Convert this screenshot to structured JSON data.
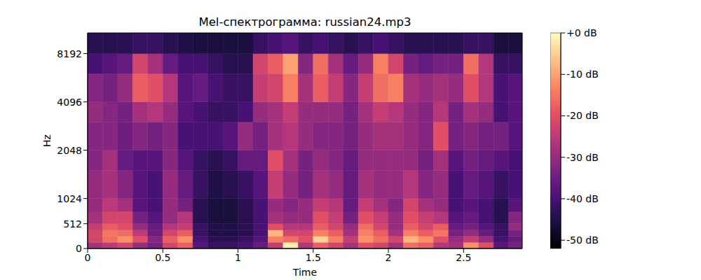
{
  "chart_data": {
    "type": "heatmap",
    "title": "Mel-спектрограмма: russian24.mp3",
    "x_label": "Time",
    "y_label": "Hz",
    "xlim": [
      0,
      2.89
    ],
    "xticks": [
      0,
      0.5,
      1,
      1.5,
      2,
      2.5
    ],
    "ylim": [
      0,
      11025
    ],
    "yticks": [
      0,
      512,
      1024,
      2048,
      4096,
      8192
    ],
    "x_bins": [
      0,
      0.1,
      0.2,
      0.3,
      0.4,
      0.5,
      0.6,
      0.7,
      0.8,
      0.9,
      1.0,
      1.1,
      1.2,
      1.3,
      1.4,
      1.5,
      1.6,
      1.7,
      1.8,
      1.9,
      2.0,
      2.1,
      2.2,
      2.3,
      2.4,
      2.5,
      2.6,
      2.7,
      2.8,
      2.89
    ],
    "y_bins": [
      0,
      128,
      256,
      384,
      512,
      768,
      1024,
      1536,
      2048,
      3072,
      4096,
      6144,
      8192,
      11025
    ],
    "cells": [
      [
        -28,
        -22,
        -22,
        -24,
        -28,
        -30,
        -30,
        -32,
        -32,
        -30,
        -32,
        -40,
        -44
      ],
      [
        -25,
        -16,
        -15,
        -18,
        -22,
        -25,
        -28,
        -28,
        -32,
        -32,
        -34,
        -38,
        -44
      ],
      [
        -22,
        -12,
        -16,
        -20,
        -22,
        -28,
        -32,
        -36,
        -35,
        -34,
        -30,
        -36,
        -44
      ],
      [
        -30,
        -20,
        -25,
        -30,
        -34,
        -38,
        -38,
        -38,
        -32,
        -28,
        -18,
        -22,
        -42
      ],
      [
        -34,
        -32,
        -35,
        -36,
        -38,
        -40,
        -40,
        -38,
        -34,
        -26,
        -20,
        -28,
        -42
      ],
      [
        -22,
        -18,
        -22,
        -26,
        -30,
        -30,
        -30,
        -32,
        -32,
        -30,
        -26,
        -36,
        -44
      ],
      [
        -18,
        -12,
        -18,
        -24,
        -26,
        -34,
        -36,
        -38,
        -40,
        -38,
        -38,
        -40,
        -45
      ],
      [
        -38,
        -40,
        -42,
        -42,
        -44,
        -44,
        -42,
        -42,
        -40,
        -40,
        -36,
        -40,
        -46
      ],
      [
        -42,
        -44,
        -45,
        -45,
        -46,
        -46,
        -45,
        -44,
        -40,
        -42,
        -40,
        -42,
        -46
      ],
      [
        -42,
        -44,
        -45,
        -45,
        -46,
        -46,
        -44,
        -42,
        -38,
        -42,
        -42,
        -44,
        -46
      ],
      [
        -40,
        -42,
        -44,
        -44,
        -44,
        -44,
        -42,
        -36,
        -30,
        -40,
        -42,
        -44,
        -46
      ],
      [
        -36,
        -38,
        -40,
        -40,
        -40,
        -40,
        -38,
        -36,
        -34,
        -30,
        -24,
        -22,
        -42
      ],
      [
        -24,
        -14,
        -8,
        -20,
        -28,
        -30,
        -24,
        -20,
        -28,
        -28,
        -22,
        -18,
        -40
      ],
      [
        -2,
        -16,
        -22,
        -26,
        -30,
        -32,
        -30,
        -28,
        -26,
        -24,
        -14,
        -10,
        -38
      ],
      [
        -26,
        -20,
        -22,
        -26,
        -30,
        -30,
        -34,
        -34,
        -30,
        -30,
        -28,
        -32,
        -42
      ],
      [
        -18,
        -5,
        -14,
        -18,
        -20,
        -24,
        -28,
        -30,
        -32,
        -30,
        -18,
        -16,
        -40
      ],
      [
        -22,
        -14,
        -18,
        -22,
        -24,
        -26,
        -30,
        -32,
        -32,
        -30,
        -24,
        -28,
        -42
      ],
      [
        -28,
        -24,
        -28,
        -30,
        -34,
        -36,
        -36,
        -36,
        -34,
        -34,
        -32,
        -36,
        -44
      ],
      [
        -20,
        -12,
        -14,
        -16,
        -20,
        -24,
        -28,
        -30,
        -30,
        -28,
        -24,
        -30,
        -42
      ],
      [
        -22,
        -16,
        -18,
        -22,
        -24,
        -28,
        -30,
        -30,
        -28,
        -24,
        -16,
        -14,
        -40
      ],
      [
        -28,
        -22,
        -28,
        -30,
        -30,
        -32,
        -30,
        -30,
        -28,
        -26,
        -14,
        -22,
        -42
      ],
      [
        -16,
        -8,
        -14,
        -18,
        -20,
        -22,
        -26,
        -30,
        -30,
        -30,
        -28,
        -34,
        -44
      ],
      [
        -18,
        -12,
        -18,
        -22,
        -24,
        -28,
        -32,
        -34,
        -32,
        -32,
        -30,
        -36,
        -44
      ],
      [
        -26,
        -20,
        -15,
        -18,
        -26,
        -30,
        -30,
        -28,
        -20,
        -26,
        -28,
        -34,
        -44
      ],
      [
        -28,
        -30,
        -34,
        -36,
        -38,
        -40,
        -40,
        -38,
        -34,
        -34,
        -30,
        -34,
        -44
      ],
      [
        -12,
        -24,
        -30,
        -34,
        -36,
        -38,
        -36,
        -34,
        -32,
        -28,
        -20,
        -16,
        -42
      ],
      [
        -20,
        -30,
        -36,
        -38,
        -40,
        -40,
        -38,
        -36,
        -34,
        -30,
        -26,
        -26,
        -42
      ],
      [
        -38,
        -40,
        -42,
        -42,
        -44,
        -44,
        -42,
        -38,
        -34,
        -40,
        -40,
        -42,
        -46
      ],
      [
        -34,
        -36,
        -34,
        -30,
        -32,
        -38,
        -40,
        -40,
        -38,
        -38,
        -38,
        -42,
        -46
      ]
    ],
    "colorbar_range": [
      -52,
      0
    ],
    "colorbar_ticks": [
      {
        "value": 0,
        "label": "+0 dB"
      },
      {
        "value": -10,
        "label": "-10 dB"
      },
      {
        "value": -20,
        "label": "-20 dB"
      },
      {
        "value": -30,
        "label": "-30 dB"
      },
      {
        "value": -40,
        "label": "-40 dB"
      },
      {
        "value": -50,
        "label": "-50 dB"
      }
    ]
  }
}
